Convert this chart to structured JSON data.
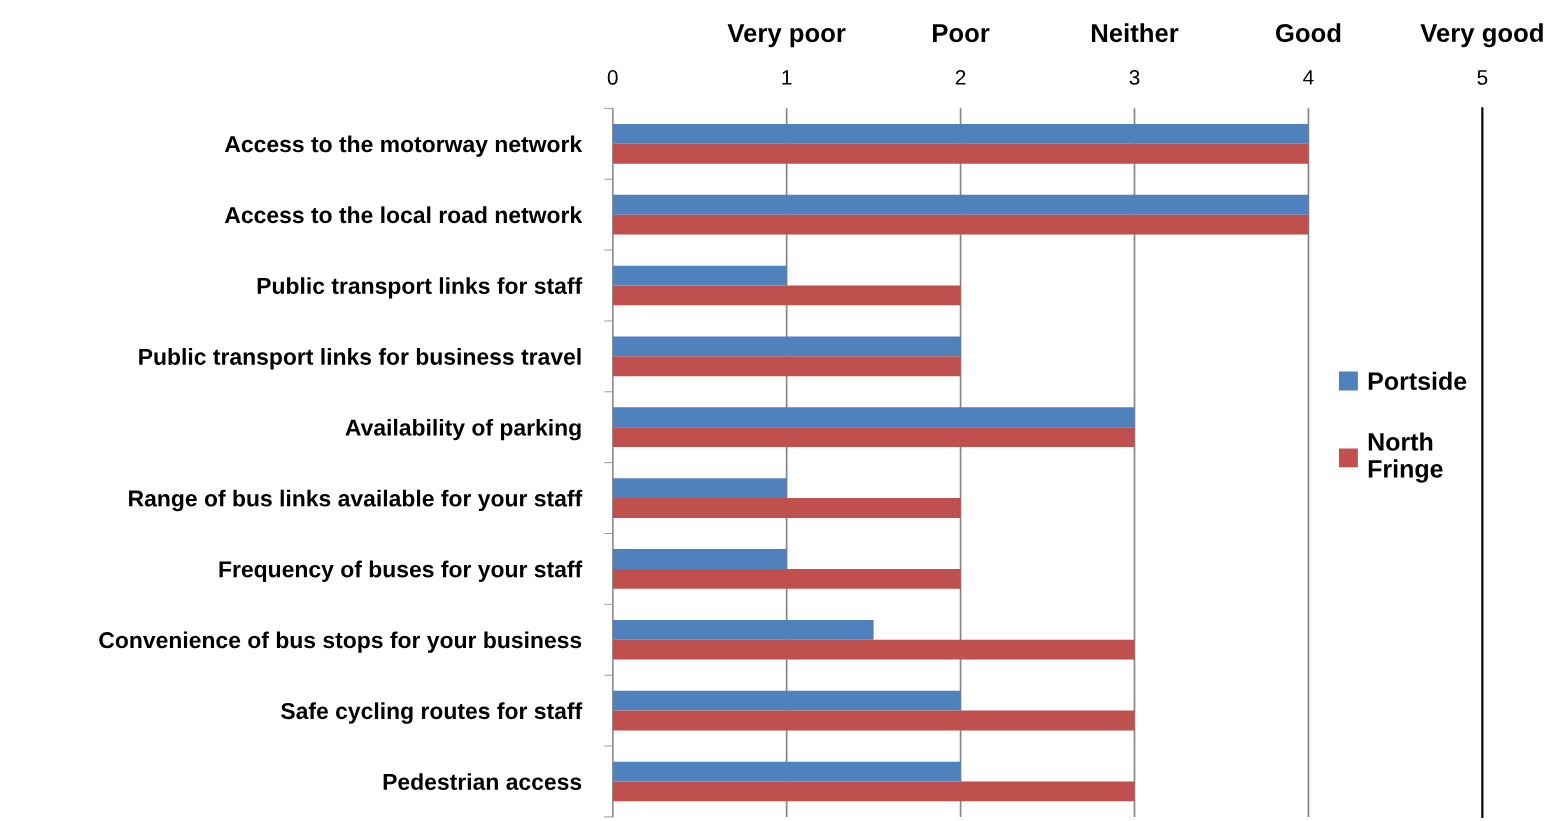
{
  "chart_data": {
    "type": "bar",
    "orientation": "horizontal",
    "categories": [
      "Access to the motorway network",
      "Access to the local road network",
      "Public transport links for staff",
      "Public transport links for business travel",
      "Availability of parking",
      "Range of bus links available for your staff",
      "Frequency of buses for your staff",
      "Convenience of bus stops for your business",
      "Safe cycling routes for staff",
      "Pedestrian access"
    ],
    "series": [
      {
        "name": "Portside",
        "color": "#4f81bd",
        "values": [
          4,
          4,
          1,
          2,
          3,
          1,
          1,
          1.5,
          2,
          2
        ]
      },
      {
        "name": "North Fringe",
        "color": "#c0504d",
        "values": [
          4,
          4,
          2,
          2,
          3,
          2,
          2,
          3,
          3,
          3
        ]
      }
    ],
    "xlim": [
      0,
      5
    ],
    "xticks": [
      0,
      1,
      2,
      3,
      4,
      5
    ],
    "annotations": [
      "Very poor",
      "Poor",
      "Neither",
      "Good",
      "Very good"
    ],
    "grid": "x",
    "legend": "right"
  }
}
